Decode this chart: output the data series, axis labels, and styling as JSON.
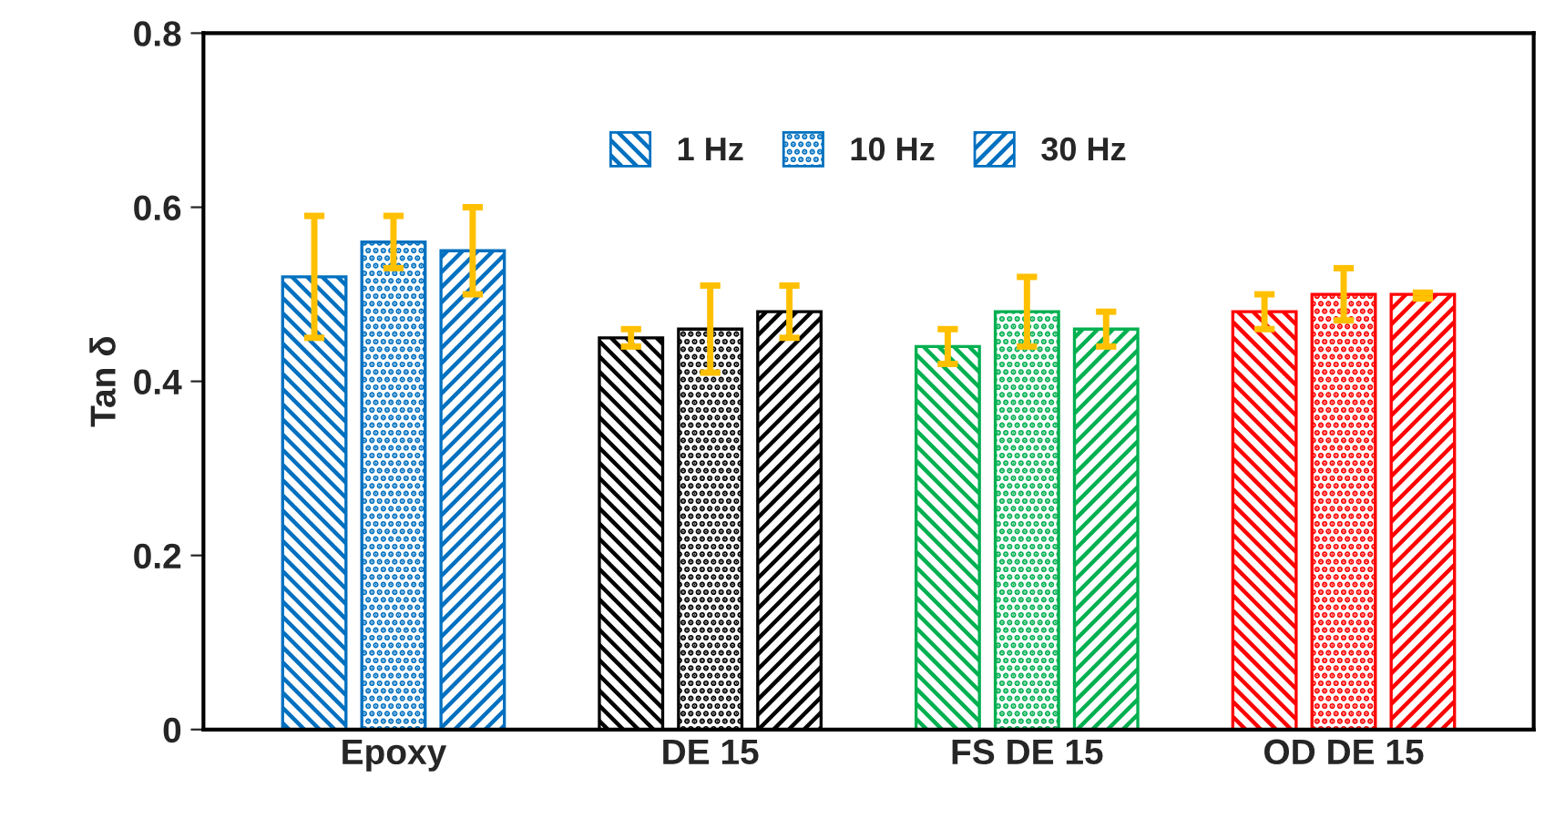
{
  "chart_data": {
    "type": "bar",
    "ylabel": "Tan δ",
    "categories": [
      "Epoxy",
      "DE 15",
      "FS DE 15",
      "OD DE 15"
    ],
    "series": [
      {
        "name": "1 Hz",
        "colors": [
          "#0070c0",
          "#000000",
          "#00b050",
          "#ff0000"
        ],
        "values": [
          0.52,
          0.45,
          0.44,
          0.48
        ],
        "errors": [
          [
            0.45,
            0.59
          ],
          [
            0.44,
            0.46
          ],
          [
            0.42,
            0.46
          ],
          [
            0.46,
            0.5
          ]
        ]
      },
      {
        "name": "10 Hz",
        "colors": [
          "#0070c0",
          "#000000",
          "#00b050",
          "#ff0000"
        ],
        "values": [
          0.56,
          0.46,
          0.48,
          0.5
        ],
        "errors": [
          [
            0.53,
            0.59
          ],
          [
            0.41,
            0.51
          ],
          [
            0.44,
            0.52
          ],
          [
            0.47,
            0.53
          ]
        ]
      },
      {
        "name": "30 Hz",
        "colors": [
          "#0070c0",
          "#000000",
          "#00b050",
          "#ff0000"
        ],
        "values": [
          0.55,
          0.48,
          0.46,
          0.5
        ],
        "errors": [
          [
            0.5,
            0.6
          ],
          [
            0.45,
            0.51
          ],
          [
            0.44,
            0.48
          ],
          [
            0.495,
            0.502
          ]
        ]
      }
    ],
    "ylim": [
      0,
      0.8
    ],
    "yticks": [
      0,
      0.2,
      0.4,
      0.6,
      0.8
    ],
    "grid": false,
    "legend": "top"
  }
}
